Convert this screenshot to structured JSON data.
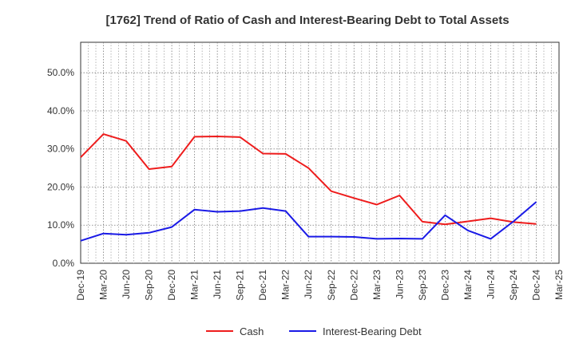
{
  "chart_data": {
    "type": "line",
    "title": "[1762]  Trend of Ratio of Cash and Interest-Bearing Debt to Total Assets",
    "xlabel": "",
    "ylabel": "",
    "ylim": [
      0,
      58
    ],
    "yticks": [
      0,
      10,
      20,
      30,
      40,
      50
    ],
    "ytick_labels": [
      "0.0%",
      "10.0%",
      "20.0%",
      "30.0%",
      "40.0%",
      "50.0%"
    ],
    "x": [
      "Dec-19",
      "Mar-20",
      "Jun-20",
      "Sep-20",
      "Dec-20",
      "Mar-21",
      "Jun-21",
      "Sep-21",
      "Dec-21",
      "Mar-22",
      "Jun-22",
      "Sep-22",
      "Dec-22",
      "Mar-23",
      "Jun-23",
      "Sep-23",
      "Dec-23",
      "Mar-24",
      "Jun-24",
      "Sep-24",
      "Dec-24",
      "Mar-25"
    ],
    "grid": true,
    "legend_position": "bottom",
    "series": [
      {
        "name": "Cash",
        "color": "#ee1c1c",
        "values": [
          27.8,
          33.9,
          32.1,
          24.7,
          25.4,
          33.2,
          33.3,
          33.1,
          28.8,
          28.7,
          25.0,
          18.9,
          17.1,
          15.4,
          17.8,
          10.9,
          10.2,
          11.0,
          11.8,
          10.8,
          10.3,
          null
        ]
      },
      {
        "name": "Interest-Bearing Debt",
        "color": "#1a1ae6",
        "values": [
          5.9,
          7.8,
          7.5,
          8.0,
          9.5,
          14.1,
          13.5,
          13.7,
          14.5,
          13.7,
          7.0,
          7.0,
          6.9,
          6.4,
          6.5,
          6.4,
          12.6,
          8.6,
          6.4,
          11.0,
          16.1,
          null
        ]
      }
    ]
  }
}
